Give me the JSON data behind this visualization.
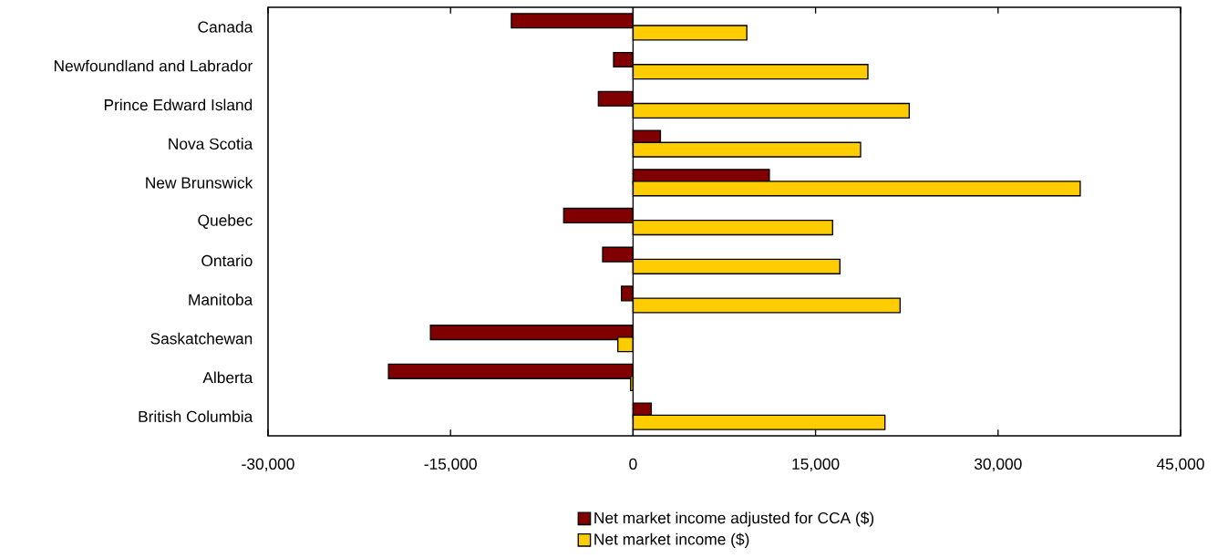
{
  "chart_data": {
    "type": "bar",
    "orientation": "horizontal",
    "categories": [
      "Canada",
      "Newfoundland and Labrador",
      "Prince Edward Island",
      "Nova Scotia",
      "New Brunswick",
      "Quebec",
      "Ontario",
      "Manitoba",
      "Saskatchewan",
      "Alberta",
      "British Columbia"
    ],
    "series": [
      {
        "name": "Net market income adjusted for CCA ($)",
        "color": "#800000",
        "values": [
          -10000,
          -1600,
          -2850,
          2250,
          11200,
          -5700,
          -2500,
          -950,
          -16650,
          -20100,
          1500
        ]
      },
      {
        "name": "Net market income ($)",
        "color": "#ffcc00",
        "values": [
          9350,
          19300,
          22700,
          18700,
          36750,
          16400,
          17000,
          21950,
          -1250,
          -200,
          20700
        ]
      }
    ],
    "xlim": [
      -30000,
      45000
    ],
    "xticks": [
      {
        "value": -30000,
        "label": "-30,000"
      },
      {
        "value": -15000,
        "label": "-15,000"
      },
      0,
      {
        "value": 15000,
        "label": "15,000"
      },
      {
        "value": 30000,
        "label": "30,000"
      },
      {
        "value": 45000,
        "label": "45,000"
      }
    ],
    "legend": "bottom"
  }
}
